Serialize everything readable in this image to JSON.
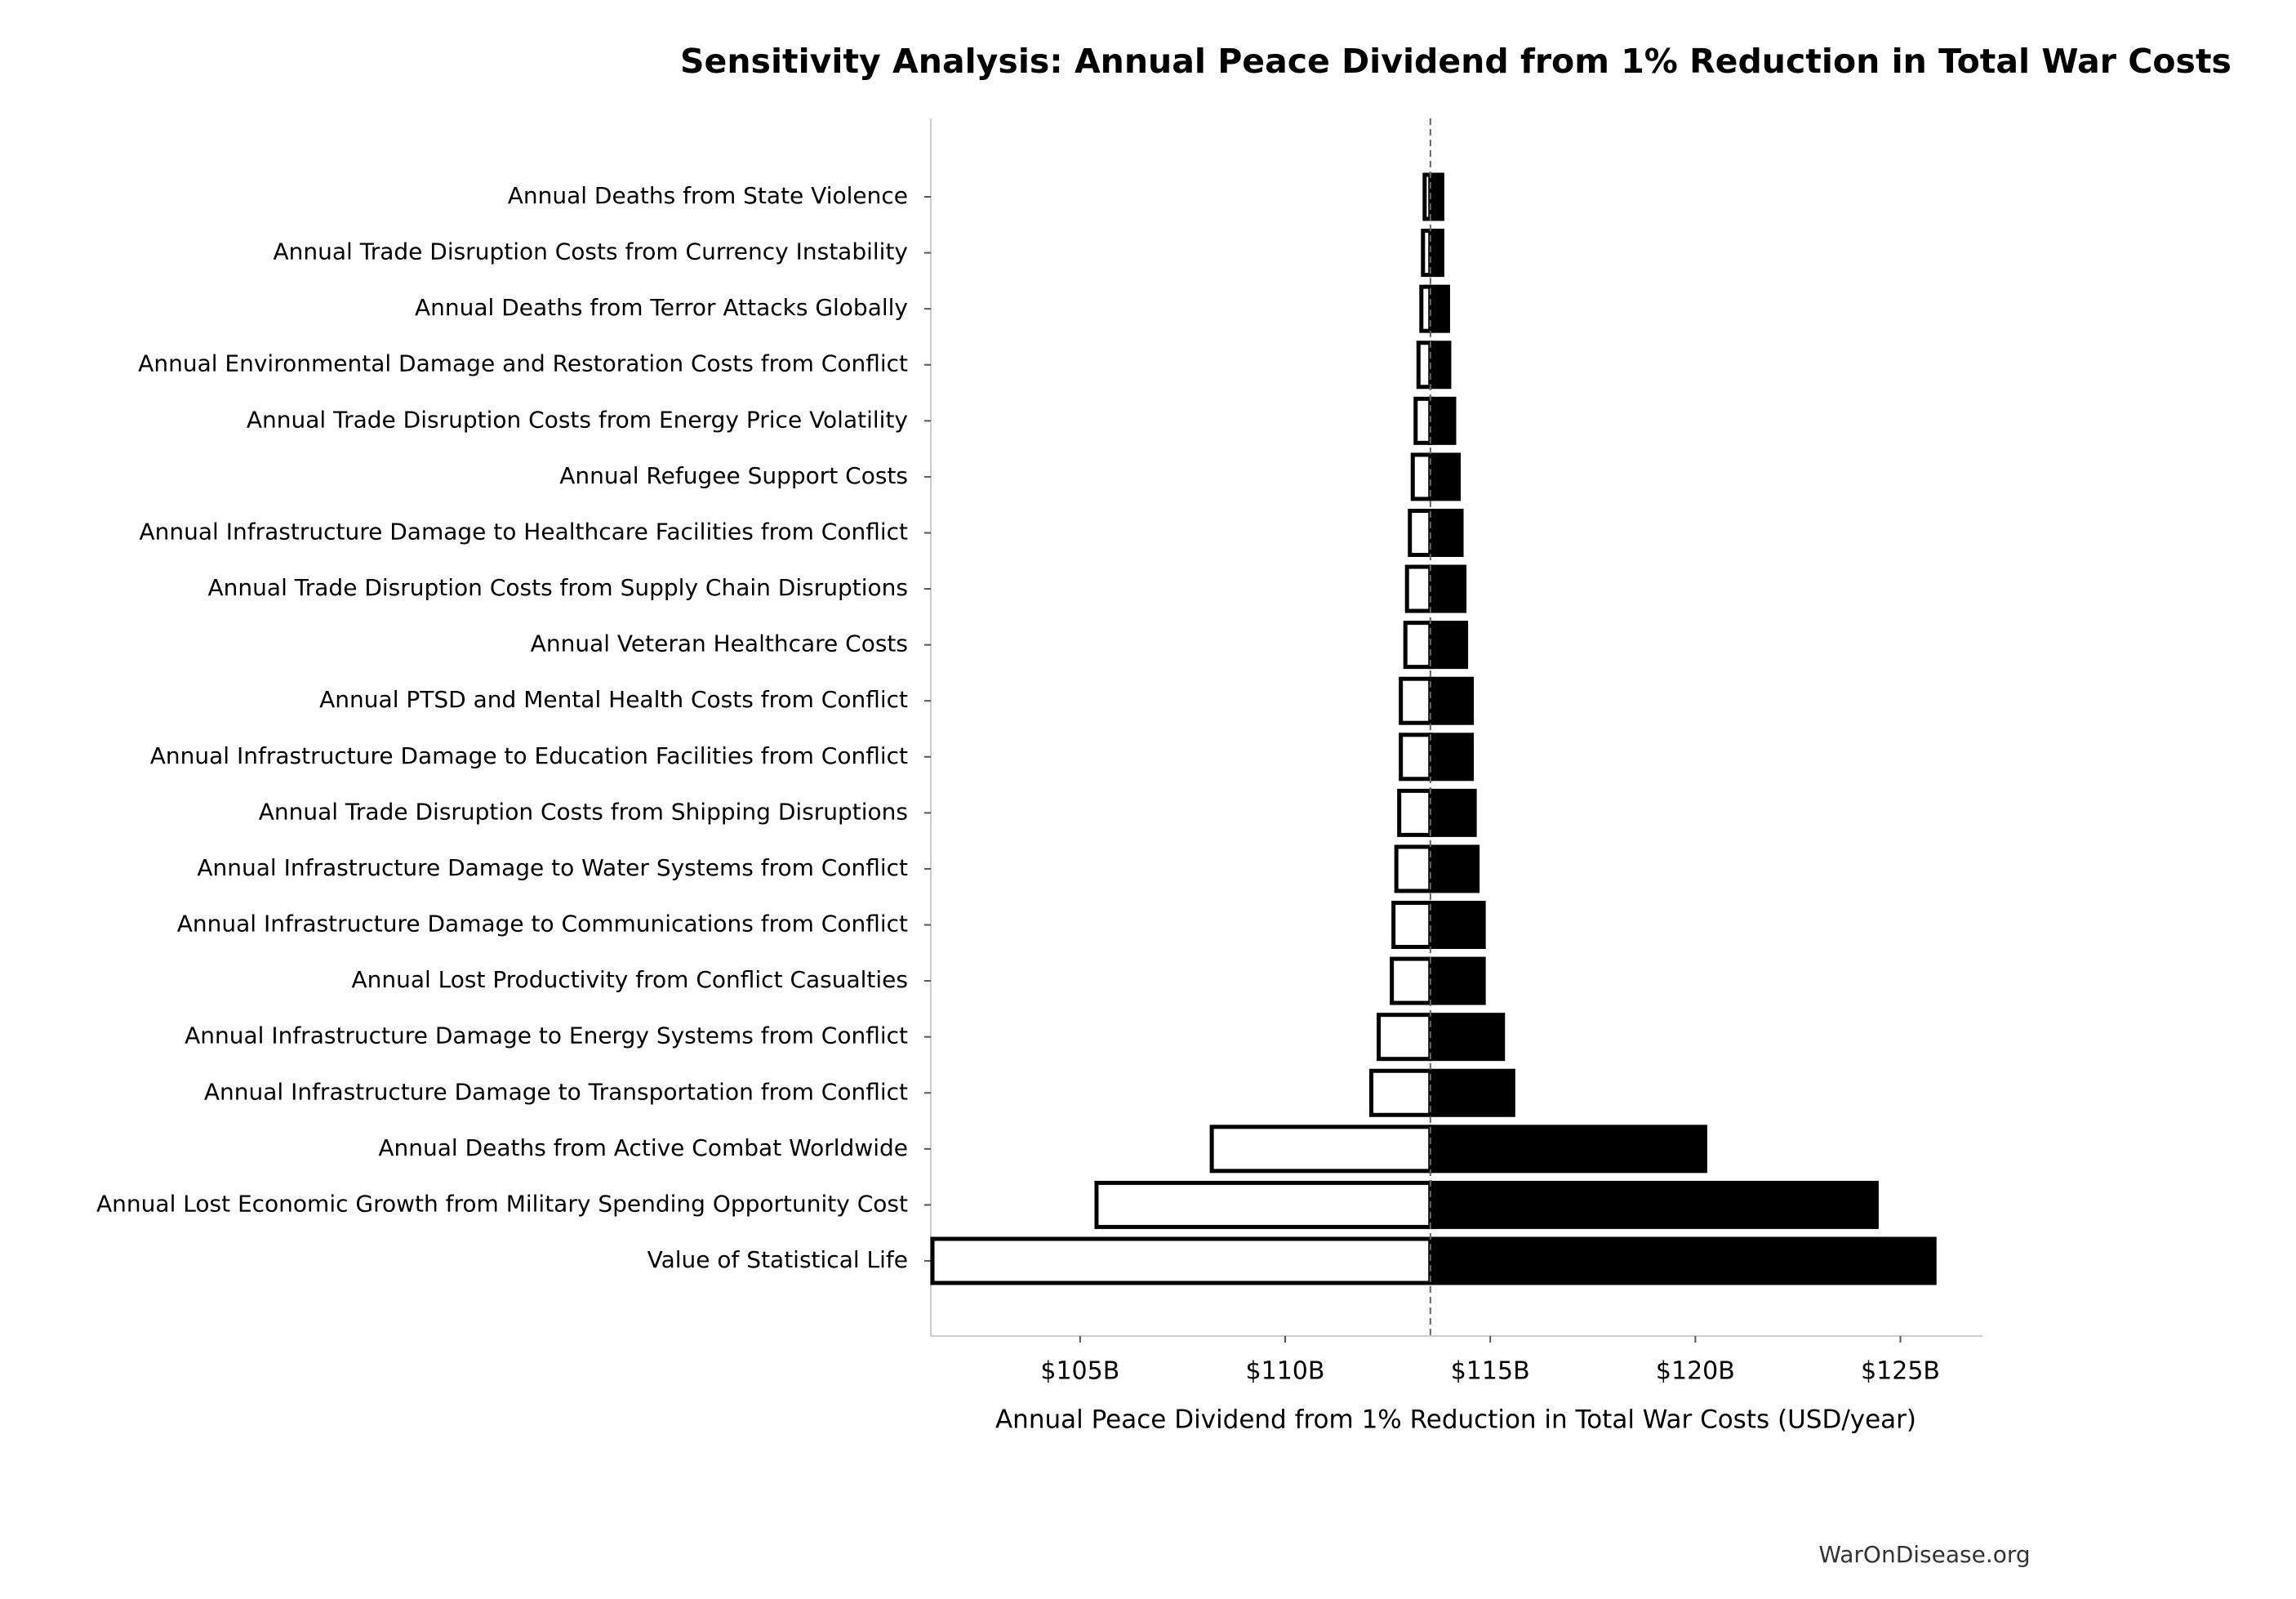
{
  "chart_data": {
    "type": "tornado",
    "title": "Sensitivity Analysis: Annual Peace Dividend from 1% Reduction in Total War Costs",
    "xlabel": "Annual Peace Dividend from 1% Reduction in Total War Costs (USD/year)",
    "source": "WarOnDisease.org",
    "categories": [
      "Annual Deaths from State Violence",
      "Annual Trade Disruption Costs from Currency Instability",
      "Annual Deaths from Terror Attacks Globally",
      "Annual Environmental Damage and Restoration Costs from Conflict",
      "Annual Trade Disruption Costs from Energy Price Volatility",
      "Annual Refugee Support Costs",
      "Annual Infrastructure Damage to Healthcare Facilities from Conflict",
      "Annual Trade Disruption Costs from Supply Chain Disruptions",
      "Annual Veteran Healthcare Costs",
      "Annual PTSD and Mental Health Costs from Conflict",
      "Annual Infrastructure Damage to Education Facilities from Conflict",
      "Annual Trade Disruption Costs from Shipping Disruptions",
      "Annual Infrastructure Damage to Water Systems from Conflict",
      "Annual Infrastructure Damage to Communications from Conflict",
      "Annual Lost Productivity from Conflict Casualties",
      "Annual Infrastructure Damage to Energy Systems from Conflict",
      "Annual Infrastructure Damage to Transportation from Conflict",
      "Annual Deaths from Active Combat Worldwide",
      "Annual Lost Economic Growth from Military Spending Opportunity Cost",
      "Value of Statistical Life"
    ],
    "low": [
      113.4,
      113.36,
      113.32,
      113.25,
      113.18,
      113.11,
      113.04,
      112.97,
      112.93,
      112.82,
      112.82,
      112.78,
      112.71,
      112.64,
      112.6,
      112.28,
      112.1,
      108.21,
      105.4,
      101.4
    ],
    "high": [
      113.83,
      113.83,
      113.97,
      114.0,
      114.12,
      114.23,
      114.3,
      114.37,
      114.41,
      114.55,
      114.55,
      114.62,
      114.69,
      114.84,
      114.84,
      115.31,
      115.56,
      120.24,
      124.42,
      125.83
    ],
    "baseline": 113.54,
    "low_color": "#ffffff",
    "high_color": "#000000",
    "edge_color": "#000000",
    "xlim": [
      101.36,
      127.0
    ],
    "xticks": [
      {
        "value": 105,
        "label": "$105B"
      },
      {
        "value": 110,
        "label": "$110B"
      },
      {
        "value": 115,
        "label": "$115B"
      },
      {
        "value": 120,
        "label": "$120B"
      },
      {
        "value": 125,
        "label": "$125B"
      }
    ]
  }
}
